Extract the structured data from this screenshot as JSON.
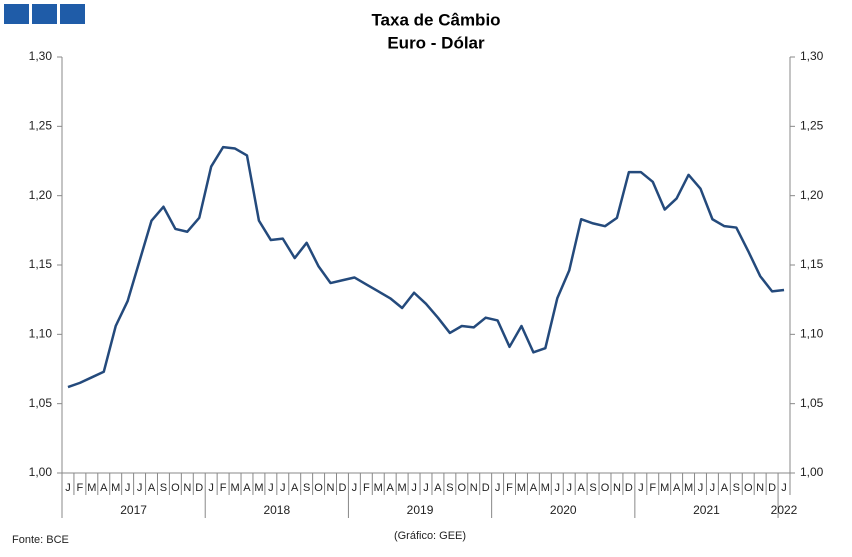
{
  "chart_data": {
    "type": "line",
    "title": "Taxa de Câmbio",
    "subtitle": "Euro - Dólar",
    "categories": [
      "J",
      "F",
      "M",
      "A",
      "M",
      "J",
      "J",
      "A",
      "S",
      "O",
      "N",
      "D",
      "J",
      "F",
      "M",
      "A",
      "M",
      "J",
      "J",
      "A",
      "S",
      "O",
      "N",
      "D",
      "J",
      "F",
      "M",
      "A",
      "M",
      "J",
      "J",
      "A",
      "S",
      "O",
      "N",
      "D",
      "J",
      "F",
      "M",
      "A",
      "M",
      "J",
      "J",
      "A",
      "S",
      "O",
      "N",
      "D",
      "J",
      "F",
      "M",
      "A",
      "M",
      "J",
      "J",
      "A",
      "S",
      "O",
      "N",
      "D",
      "J"
    ],
    "year_labels": [
      "2017",
      "2018",
      "2019",
      "2020",
      "2021",
      "2022"
    ],
    "series": [
      {
        "name": "Euro - Dólar",
        "color": "#244a7c",
        "values": [
          1.062,
          1.065,
          1.069,
          1.073,
          1.106,
          1.124,
          1.153,
          1.182,
          1.192,
          1.176,
          1.174,
          1.184,
          1.221,
          1.235,
          1.234,
          1.229,
          1.182,
          1.168,
          1.169,
          1.155,
          1.166,
          1.149,
          1.137,
          1.139,
          1.141,
          1.136,
          1.131,
          1.126,
          1.119,
          1.13,
          1.122,
          1.112,
          1.101,
          1.106,
          1.105,
          1.112,
          1.11,
          1.091,
          1.106,
          1.087,
          1.09,
          1.126,
          1.146,
          1.183,
          1.18,
          1.178,
          1.184,
          1.217,
          1.217,
          1.21,
          1.19,
          1.198,
          1.215,
          1.205,
          1.183,
          1.178,
          1.177,
          1.16,
          1.142,
          1.131,
          1.132
        ]
      }
    ],
    "ylim": [
      1.0,
      1.3
    ],
    "yticks": [
      {
        "value": 1.0,
        "label": "1,00"
      },
      {
        "value": 1.05,
        "label": "1,05"
      },
      {
        "value": 1.1,
        "label": "1,10"
      },
      {
        "value": 1.15,
        "label": "1,15"
      },
      {
        "value": 1.2,
        "label": "1,20"
      },
      {
        "value": 1.25,
        "label": "1,25"
      },
      {
        "value": 1.3,
        "label": "1,30"
      }
    ],
    "y2lim": [
      1.0,
      1.3
    ],
    "y2ticks": [
      {
        "value": 1.0,
        "label": "1,00"
      },
      {
        "value": 1.05,
        "label": "1,05"
      },
      {
        "value": 1.1,
        "label": "1,10"
      },
      {
        "value": 1.15,
        "label": "1,15"
      },
      {
        "value": 1.2,
        "label": "1,20"
      },
      {
        "value": 1.25,
        "label": "1,25"
      },
      {
        "value": 1.3,
        "label": "1,30"
      }
    ],
    "source": "Fonte: BCE",
    "credit": "(Gráfico: GEE)",
    "grid": false
  }
}
